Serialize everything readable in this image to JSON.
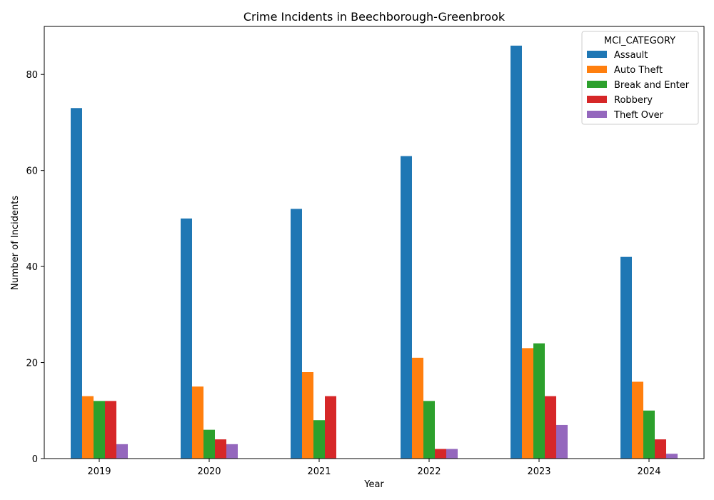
{
  "chart_data": {
    "type": "bar",
    "title": "Crime Incidents in Beechborough-Greenbrook",
    "xlabel": "Year",
    "ylabel": "Number of Incidents",
    "categories": [
      "2019",
      "2020",
      "2021",
      "2022",
      "2023",
      "2024"
    ],
    "ylim": [
      0,
      90
    ],
    "yticks": [
      0,
      20,
      40,
      60,
      80
    ],
    "grid": false,
    "legend": {
      "title": "MCI_CATEGORY",
      "placement": "top-right"
    },
    "series": [
      {
        "name": "Assault",
        "color": "#1f77b4",
        "values": [
          73,
          50,
          52,
          63,
          86,
          42
        ]
      },
      {
        "name": "Auto Theft",
        "color": "#ff7f0e",
        "values": [
          13,
          15,
          18,
          21,
          23,
          16
        ]
      },
      {
        "name": "Break and Enter",
        "color": "#2ca02c",
        "values": [
          12,
          6,
          8,
          12,
          24,
          10
        ]
      },
      {
        "name": "Robbery",
        "color": "#d62728",
        "values": [
          12,
          4,
          13,
          2,
          13,
          4
        ]
      },
      {
        "name": "Theft Over",
        "color": "#9467bd",
        "values": [
          3,
          3,
          0,
          2,
          7,
          1
        ]
      }
    ]
  }
}
